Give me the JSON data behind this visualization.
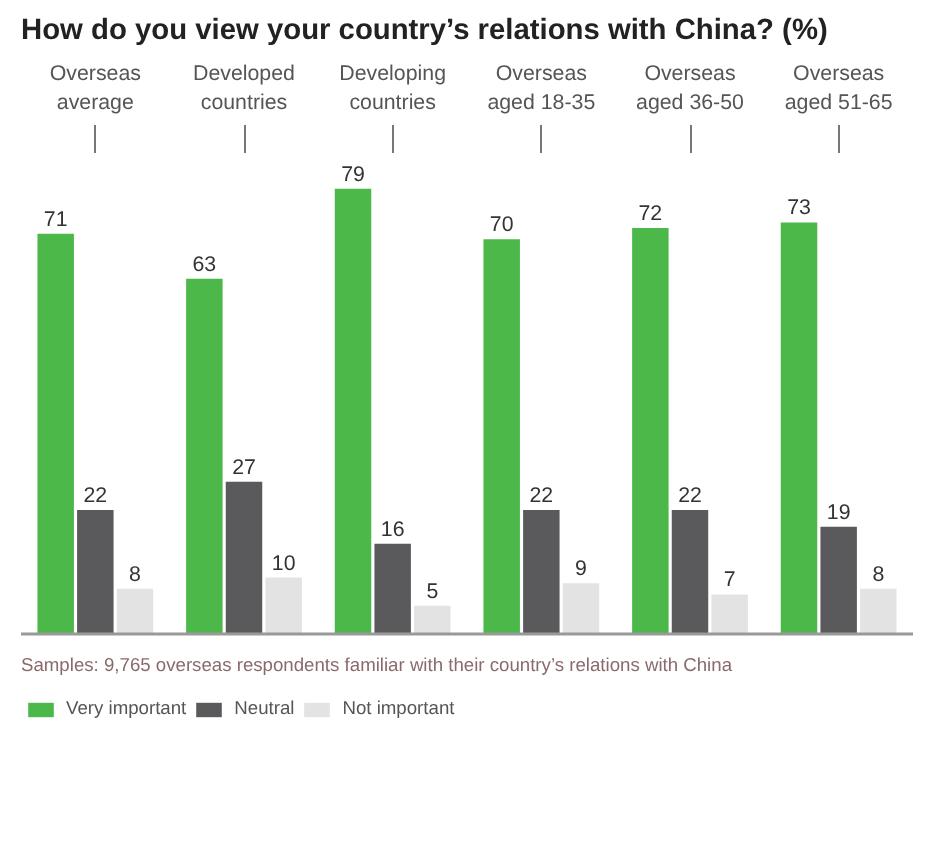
{
  "chart_data": {
    "type": "bar",
    "title": "How do you view your country’s relations with China? (%)",
    "categories": [
      "Overseas average",
      "Developed countries",
      "Developing countries",
      "Overseas aged 18-35",
      "Overseas aged 36-50",
      "Overseas aged 51-65"
    ],
    "series": [
      {
        "name": "Very important",
        "color": "#4cb84a",
        "values": [
          71,
          63,
          79,
          70,
          72,
          73
        ]
      },
      {
        "name": "Neutral",
        "color": "#5a5a5c",
        "values": [
          22,
          27,
          16,
          22,
          22,
          19
        ]
      },
      {
        "name": "Not important",
        "color": "#e3e3e3",
        "values": [
          8,
          10,
          5,
          9,
          7,
          8
        ]
      }
    ],
    "tick_labels": "x",
    "data_labels": true,
    "legend": "bottom",
    "grid": false,
    "annotations": [
      "Samples: 9,765 overseas respondents familiar with their country’s relations with China"
    ]
  }
}
